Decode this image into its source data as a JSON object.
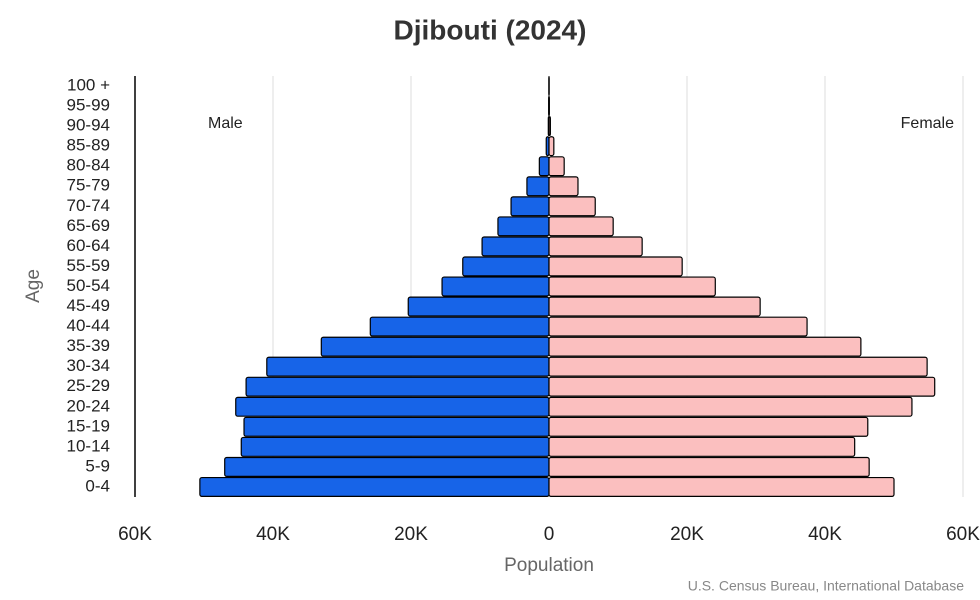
{
  "chart_data": {
    "type": "pyramid",
    "title": "Djibouti (2024)",
    "x_label": "Population",
    "y_label": "Age",
    "source": "U.S. Census Bureau, International Database",
    "categories": [
      "0-4",
      "5-9",
      "10-14",
      "15-19",
      "20-24",
      "25-29",
      "30-34",
      "35-39",
      "40-44",
      "45-49",
      "50-54",
      "55-59",
      "60-64",
      "65-69",
      "70-74",
      "75-79",
      "80-84",
      "85-89",
      "90-94",
      "95-99",
      "100 +"
    ],
    "series": [
      {
        "name": "Male",
        "color": "#1764e8",
        "values": [
          -50600,
          -47000,
          -44600,
          -44200,
          -45400,
          -43900,
          -40900,
          -33000,
          -25900,
          -20400,
          -15500,
          -12500,
          -9700,
          -7400,
          -5500,
          -3200,
          -1400,
          -400,
          -100,
          -50,
          -20
        ]
      },
      {
        "name": "Female",
        "color": "#fbbfbf",
        "values": [
          50000,
          46400,
          44300,
          46200,
          52600,
          55900,
          54800,
          45200,
          37400,
          30600,
          24100,
          19300,
          13500,
          9300,
          6700,
          4200,
          2200,
          700,
          200,
          50,
          20
        ]
      }
    ],
    "xlim": [
      -60000,
      60000
    ],
    "xticks": [
      {
        "value": -60000,
        "label": "60K"
      },
      {
        "value": -40000,
        "label": "40K"
      },
      {
        "value": -20000,
        "label": "20K"
      },
      0,
      {
        "value": 20000,
        "label": "20K"
      },
      {
        "value": 40000,
        "label": "40K"
      },
      {
        "value": 60000,
        "label": "60K"
      }
    ],
    "grid": true
  }
}
